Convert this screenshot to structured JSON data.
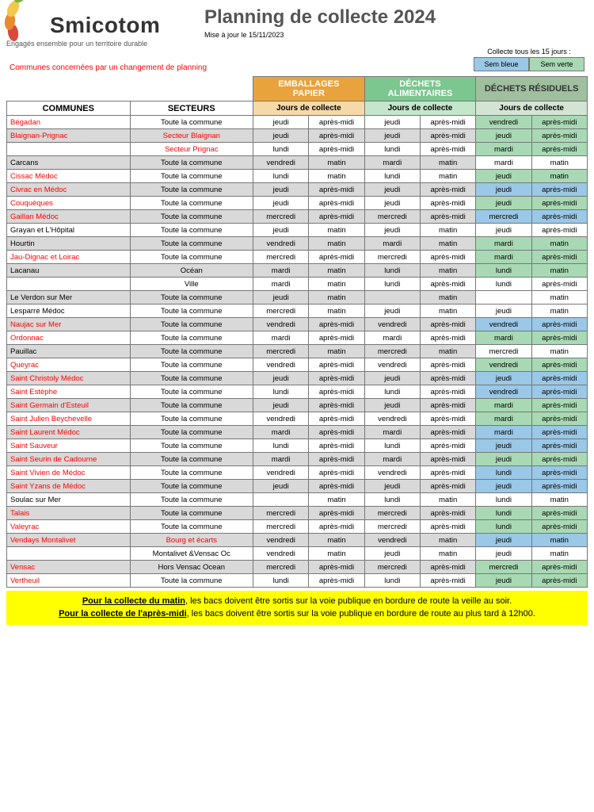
{
  "title": "Planning de collecte 2024",
  "update": "Mise à jour le 15/11/2023",
  "brand": "Smicotom",
  "tagline": "Engagés ensemble pour un territoire durable",
  "legend": {
    "title": "Collecte tous les 15 jours :",
    "blue": "Sem bleue",
    "green": "Sem verte"
  },
  "note": "Communes concernées par un changement de planning",
  "colors": {
    "emballages_header": "#e8a33d",
    "emballages_sub": "#f6d9a8",
    "dechets_header": "#7cc68f",
    "dechets_sub": "#c4e6cc",
    "residuels_header": "#9fbf9f",
    "residuels_sub": "#d4e4d4",
    "row_alt": "#d9d9d9",
    "blue": "#9ac8e6",
    "green": "#a8d9b4",
    "white": "#ffffff",
    "petals": [
      "#d94a3a",
      "#e88b2e",
      "#f2c94c",
      "#7cb342",
      "#4a7c2c"
    ]
  },
  "headers": {
    "commune": "COMMUNES",
    "secteur": "SECTEURS",
    "cat1": "EMBALLAGES PAPIER",
    "cat2": "DÉCHETS ALIMENTAIRES",
    "cat3": "DÉCHETS RÉSIDUELS",
    "sub": "Jours de collecte"
  },
  "footer": {
    "l1a": "Pour la collecte du matin",
    "l1b": ", les bacs doivent être sortis sur la voie publique en bordure de route la veille au soir.",
    "l2a": "Pour la collecte de l'après-midi",
    "l2b": ", les bacs doivent être sortis sur la voie publique en bordure de route au plus tard à 12h00."
  },
  "rows": [
    {
      "c": "Bégadan",
      "cRed": 1,
      "s": "Toute la commune",
      "sRed": 0,
      "e": [
        "jeudi",
        "après-midi"
      ],
      "d": [
        "jeudi",
        "après-midi"
      ],
      "r": [
        "vendredi",
        "après-midi"
      ],
      "rc": "green"
    },
    {
      "c": "Blaignan-Prignac",
      "cRed": 1,
      "s": "Secteur Blaignan",
      "sRed": 1,
      "e": [
        "jeudi",
        "après-midi"
      ],
      "d": [
        "jeudi",
        "après-midi"
      ],
      "r": [
        "jeudi",
        "après-midi"
      ],
      "rc": "green"
    },
    {
      "c": "",
      "cRed": 0,
      "s": "Secteur Prignac",
      "sRed": 1,
      "e": [
        "lundi",
        "après-midi"
      ],
      "d": [
        "lundi",
        "après-midi"
      ],
      "r": [
        "mardi",
        "après-midi"
      ],
      "rc": "green"
    },
    {
      "c": "Carcans",
      "cRed": 0,
      "s": "Toute la commune",
      "sRed": 0,
      "e": [
        "vendredi",
        "matin"
      ],
      "d": [
        "mardi",
        "matin"
      ],
      "r": [
        "mardi",
        "matin"
      ],
      "rc": "white"
    },
    {
      "c": "Cissac Médoc",
      "cRed": 1,
      "s": "Toute la commune",
      "sRed": 0,
      "e": [
        "lundi",
        "matin"
      ],
      "d": [
        "lundi",
        "matin"
      ],
      "r": [
        "jeudi",
        "matin"
      ],
      "rc": "green"
    },
    {
      "c": "Civrac en Médoc",
      "cRed": 1,
      "s": "Toute la commune",
      "sRed": 0,
      "e": [
        "jeudi",
        "après-midi"
      ],
      "d": [
        "jeudi",
        "après-midi"
      ],
      "r": [
        "jeudi",
        "après-midi"
      ],
      "rc": "blue"
    },
    {
      "c": "Couquèques",
      "cRed": 1,
      "s": "Toute la commune",
      "sRed": 0,
      "e": [
        "jeudi",
        "après-midi"
      ],
      "d": [
        "jeudi",
        "après-midi"
      ],
      "r": [
        "jeudi",
        "après-midi"
      ],
      "rc": "green"
    },
    {
      "c": "Gaillan Médoc",
      "cRed": 1,
      "s": "Toute la commune",
      "sRed": 0,
      "e": [
        "mercredi",
        "après-midi"
      ],
      "d": [
        "mercredi",
        "après-midi"
      ],
      "r": [
        "mercredi",
        "après-midi"
      ],
      "rc": "blue"
    },
    {
      "c": "Grayan et L'Hôpital",
      "cRed": 0,
      "s": "Toute la commune",
      "sRed": 0,
      "e": [
        "jeudi",
        "matin"
      ],
      "d": [
        "jeudi",
        "matin"
      ],
      "r": [
        "jeudi",
        "après-midi"
      ],
      "rc": "white"
    },
    {
      "c": "Hourtin",
      "cRed": 0,
      "s": "Toute la commune",
      "sRed": 0,
      "e": [
        "vendredi",
        "matin"
      ],
      "d": [
        "mardi",
        "matin"
      ],
      "r": [
        "mardi",
        "matin"
      ],
      "rc": "green"
    },
    {
      "c": "Jau-Dignac et Loirac",
      "cRed": 1,
      "s": "Toute la commune",
      "sRed": 0,
      "e": [
        "mercredi",
        "après-midi"
      ],
      "d": [
        "mercredi",
        "après-midi"
      ],
      "r": [
        "mardi",
        "après-midi"
      ],
      "rc": "green"
    },
    {
      "c": "Lacanau",
      "cRed": 0,
      "s": "Océan",
      "sRed": 0,
      "e": [
        "mardi",
        "matin"
      ],
      "d": [
        "lundi",
        "matin"
      ],
      "r": [
        "lundi",
        "matin"
      ],
      "rc": "green"
    },
    {
      "c": "",
      "cRed": 0,
      "s": "Ville",
      "sRed": 0,
      "e": [
        "mardi",
        "matin"
      ],
      "d": [
        "lundi",
        "après-midi"
      ],
      "r": [
        "lundi",
        "après-midi"
      ],
      "rc": "white"
    },
    {
      "c": "Le Verdon sur Mer",
      "cRed": 0,
      "s": "Toute la commune",
      "sRed": 0,
      "e": [
        "jeudi",
        "matin"
      ],
      "d": [
        "",
        "matin"
      ],
      "r": [
        "",
        "matin"
      ],
      "rc": "white"
    },
    {
      "c": "Lesparre Médoc",
      "cRed": 0,
      "s": "Toute la commune",
      "sRed": 0,
      "e": [
        "mercredi",
        "matin"
      ],
      "d": [
        "jeudi",
        "matin"
      ],
      "r": [
        "jeudi",
        "matin"
      ],
      "rc": "white"
    },
    {
      "c": "Naujac sur Mer",
      "cRed": 1,
      "s": "Toute la commune",
      "sRed": 0,
      "e": [
        "vendredi",
        "après-midi"
      ],
      "d": [
        "vendredi",
        "après-midi"
      ],
      "r": [
        "vendredi",
        "après-midi"
      ],
      "rc": "blue"
    },
    {
      "c": "Ordonnac",
      "cRed": 1,
      "s": "Toute la commune",
      "sRed": 0,
      "e": [
        "mardi",
        "après-midi"
      ],
      "d": [
        "mardi",
        "après-midi"
      ],
      "r": [
        "mardi",
        "après-midi"
      ],
      "rc": "green"
    },
    {
      "c": "Pauillac",
      "cRed": 0,
      "s": "Toute la commune",
      "sRed": 0,
      "e": [
        "mercredi",
        "matin"
      ],
      "d": [
        "mercredi",
        "matin"
      ],
      "r": [
        "mercredi",
        "matin"
      ],
      "rc": "white"
    },
    {
      "c": "Queyrac",
      "cRed": 1,
      "s": "Toute la commune",
      "sRed": 0,
      "e": [
        "vendredi",
        "après-midi"
      ],
      "d": [
        "vendredi",
        "après-midi"
      ],
      "r": [
        "vendredi",
        "après-midi"
      ],
      "rc": "green"
    },
    {
      "c": "Saint Christoly Médoc",
      "cRed": 1,
      "s": "Toute la commune",
      "sRed": 0,
      "e": [
        "jeudi",
        "après-midi"
      ],
      "d": [
        "jeudi",
        "après-midi"
      ],
      "r": [
        "jeudi",
        "après-midi"
      ],
      "rc": "blue"
    },
    {
      "c": "Saint Estèphe",
      "cRed": 1,
      "s": "Toute la commune",
      "sRed": 0,
      "e": [
        "lundi",
        "après-midi"
      ],
      "d": [
        "lundi",
        "après-midi"
      ],
      "r": [
        "vendredi",
        "après-midi"
      ],
      "rc": "blue"
    },
    {
      "c": "Saint Germain d'Esteuil",
      "cRed": 1,
      "s": "Toute la commune",
      "sRed": 0,
      "e": [
        "jeudi",
        "après-midi"
      ],
      "d": [
        "jeudi",
        "après-midi"
      ],
      "r": [
        "mardi",
        "après-midi"
      ],
      "rc": "green"
    },
    {
      "c": "Saint Julien Beychevelle",
      "cRed": 1,
      "s": "Toute la commune",
      "sRed": 0,
      "e": [
        "vendredi",
        "après-midi"
      ],
      "d": [
        "vendredi",
        "après-midi"
      ],
      "r": [
        "mardi",
        "après-midi"
      ],
      "rc": "green"
    },
    {
      "c": "Saint Laurent Médoc",
      "cRed": 1,
      "s": "Toute la commune",
      "sRed": 0,
      "e": [
        "mardi",
        "après-midi"
      ],
      "d": [
        "mardi",
        "après-midi"
      ],
      "r": [
        "mardi",
        "après-midi"
      ],
      "rc": "blue"
    },
    {
      "c": "Saint Sauveur",
      "cRed": 1,
      "s": "Toute la commune",
      "sRed": 0,
      "e": [
        "lundi",
        "après-midi"
      ],
      "d": [
        "lundi",
        "après-midi"
      ],
      "r": [
        "jeudi",
        "après-midi"
      ],
      "rc": "blue"
    },
    {
      "c": "Saint Seurin de Cadourne",
      "cRed": 1,
      "s": "Toute la commune",
      "sRed": 0,
      "e": [
        "mardi",
        "après-midi"
      ],
      "d": [
        "mardi",
        "après-midi"
      ],
      "r": [
        "jeudi",
        "après-midi"
      ],
      "rc": "green"
    },
    {
      "c": "Saint Vivien de Médoc",
      "cRed": 1,
      "s": "Toute la commune",
      "sRed": 0,
      "e": [
        "vendredi",
        "après-midi"
      ],
      "d": [
        "vendredi",
        "après-midi"
      ],
      "r": [
        "lundi",
        "après-midi"
      ],
      "rc": "blue"
    },
    {
      "c": "Saint Yzans de Médoc",
      "cRed": 1,
      "s": "Toute la commune",
      "sRed": 0,
      "e": [
        "jeudi",
        "après-midi"
      ],
      "d": [
        "jeudi",
        "après-midi"
      ],
      "r": [
        "jeudi",
        "après-midi"
      ],
      "rc": "blue"
    },
    {
      "c": "Soulac sur Mer",
      "cRed": 0,
      "s": "Toute la commune",
      "sRed": 0,
      "e": [
        "",
        "matin"
      ],
      "d": [
        "lundi",
        "matin"
      ],
      "r": [
        "lundi",
        "matin"
      ],
      "rc": "white"
    },
    {
      "c": "Talais",
      "cRed": 1,
      "s": "Toute la commune",
      "sRed": 0,
      "e": [
        "mercredi",
        "après-midi"
      ],
      "d": [
        "mercredi",
        "après-midi"
      ],
      "r": [
        "lundi",
        "après-midi"
      ],
      "rc": "green"
    },
    {
      "c": "Valeyrac",
      "cRed": 1,
      "s": "Toute la commune",
      "sRed": 0,
      "e": [
        "mercredi",
        "après-midi"
      ],
      "d": [
        "mercredi",
        "après-midi"
      ],
      "r": [
        "lundi",
        "après-midi"
      ],
      "rc": "green"
    },
    {
      "c": "Vendays Montalivet",
      "cRed": 1,
      "s": "Bourg et écarts",
      "sRed": 1,
      "e": [
        "vendredi",
        "matin"
      ],
      "d": [
        "vendredi",
        "matin"
      ],
      "r": [
        "jeudi",
        "matin"
      ],
      "rc": "blue"
    },
    {
      "c": "",
      "cRed": 0,
      "s": "Montalivet &Vensac Oc",
      "sRed": 0,
      "e": [
        "vendredi",
        "matin"
      ],
      "d": [
        "jeudi",
        "matin"
      ],
      "r": [
        "jeudi",
        "matin"
      ],
      "rc": "white"
    },
    {
      "c": "Vensac",
      "cRed": 1,
      "s": "Hors Vensac Ocean",
      "sRed": 0,
      "e": [
        "mercredi",
        "après-midi"
      ],
      "d": [
        "mercredi",
        "après-midi"
      ],
      "r": [
        "mercredi",
        "après-midi"
      ],
      "rc": "green"
    },
    {
      "c": "Vertheuil",
      "cRed": 1,
      "s": "Toute la commune",
      "sRed": 0,
      "e": [
        "lundi",
        "après-midi"
      ],
      "d": [
        "lundi",
        "après-midi"
      ],
      "r": [
        "jeudi",
        "après-midi"
      ],
      "rc": "green"
    }
  ]
}
